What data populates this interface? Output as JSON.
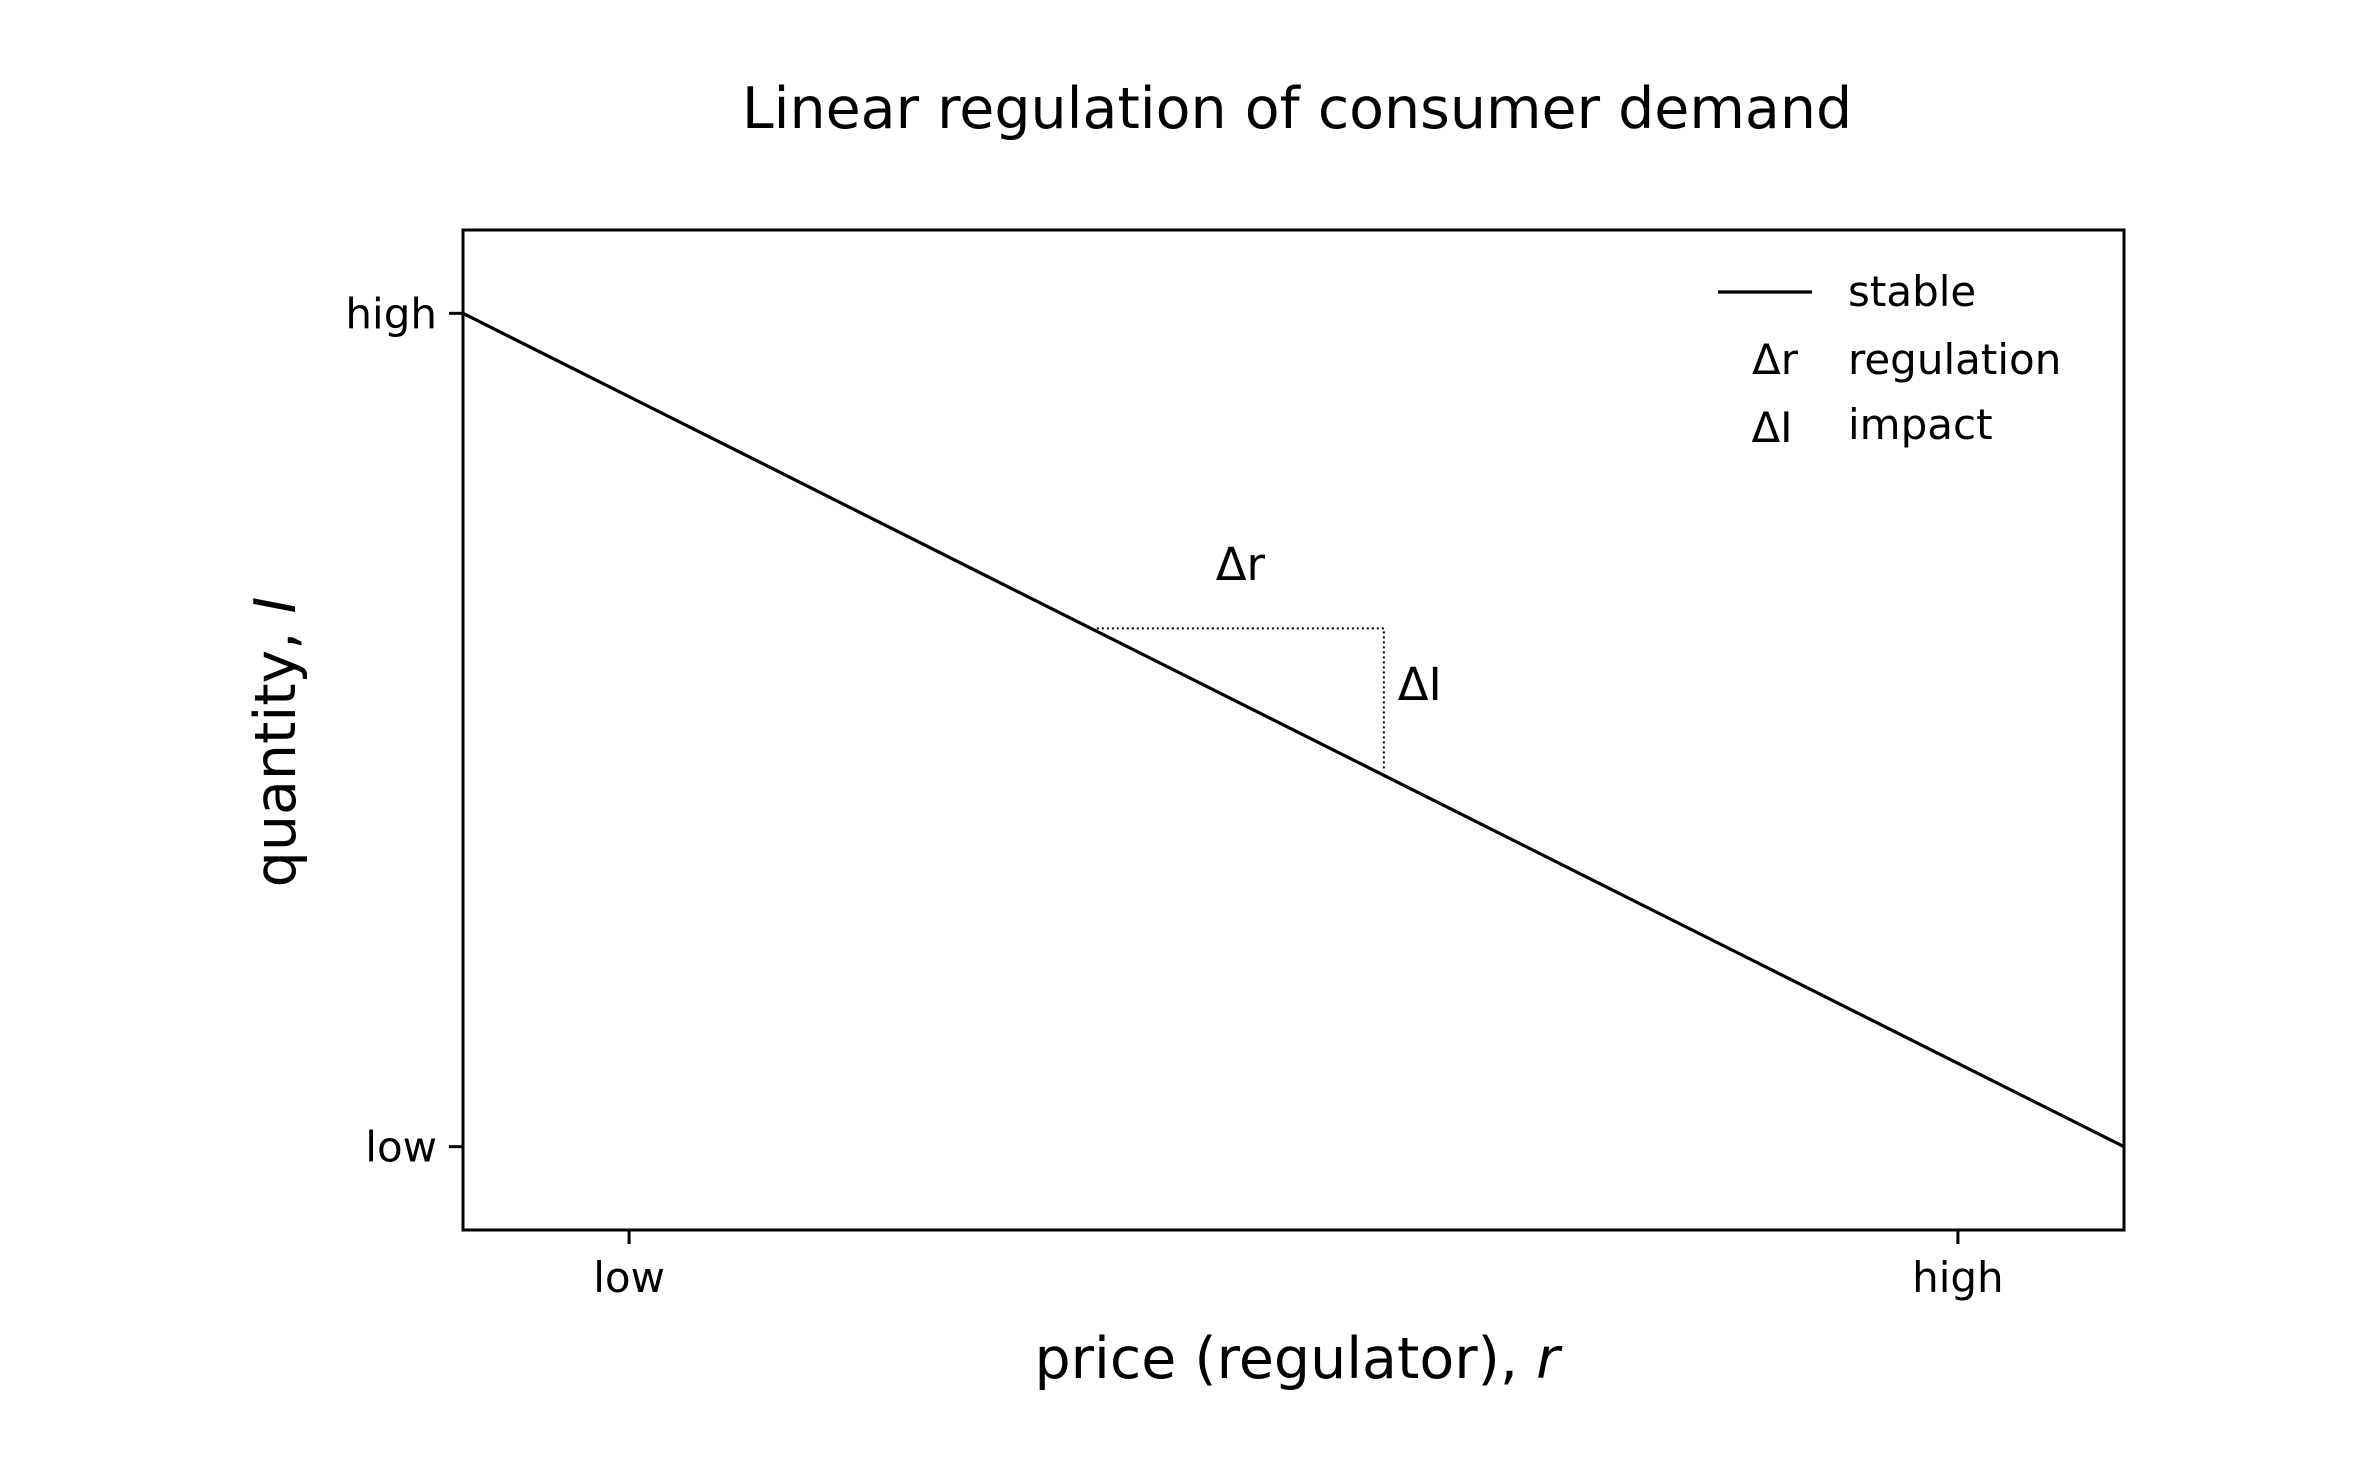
{
  "chart_data": {
    "type": "line",
    "title": "Linear regulation of consumer demand",
    "xlabel": "price (regulator), ",
    "xlabel_var": "r",
    "ylabel": "quantity, ",
    "ylabel_var": "I",
    "xlim": [
      -0.125,
      1.125
    ],
    "ylim": [
      -0.1,
      1.1
    ],
    "x_ticks": [
      {
        "value": 0,
        "label": "low"
      },
      {
        "value": 1,
        "label": "high"
      }
    ],
    "y_ticks": [
      {
        "value": 0,
        "label": "low"
      },
      {
        "value": 1,
        "label": "high"
      }
    ],
    "series": [
      {
        "name": "stable",
        "x": [
          -0.125,
          1.125
        ],
        "y": [
          1.0,
          0.0
        ],
        "color": "#000000",
        "style": "solid"
      }
    ],
    "regulation_step": {
      "x_start": 0.352,
      "x_end": 0.568,
      "y_start": 0.622,
      "y_end": 0.45,
      "style": "dotted"
    },
    "annotations": [
      {
        "text": "Δr",
        "x": 0.46,
        "y": 0.68
      },
      {
        "text": "ΔI",
        "x": 0.595,
        "y": 0.536
      }
    ],
    "legend": {
      "position": "top-right",
      "entries": [
        {
          "symbol": "line",
          "label": "stable"
        },
        {
          "symbol": "Δr",
          "label": "regulation"
        },
        {
          "symbol": "ΔI",
          "label": "impact"
        }
      ]
    },
    "grid": false
  }
}
